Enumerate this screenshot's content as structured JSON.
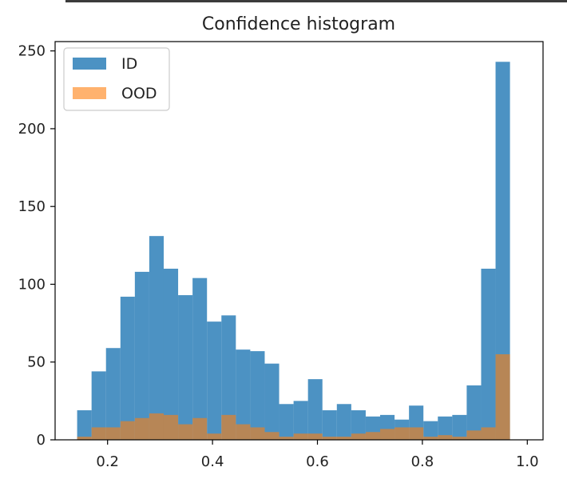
{
  "chart_data": {
    "type": "bar",
    "title": "Confidence histogram",
    "xlabel": "",
    "ylabel": "",
    "xlim": [
      0.1,
      1.03
    ],
    "ylim": [
      0,
      256
    ],
    "xticks": [
      0.2,
      0.4,
      0.6,
      0.8,
      1.0
    ],
    "xtick_labels": [
      "0.2",
      "0.4",
      "0.6",
      "0.8",
      "1.0"
    ],
    "yticks": [
      0,
      50,
      100,
      150,
      200,
      250
    ],
    "ytick_labels": [
      "0",
      "50",
      "100",
      "150",
      "200",
      "250"
    ],
    "grid": false,
    "legend_position": "top-left",
    "bin_edges": [
      0.142,
      0.1695,
      0.197,
      0.2245,
      0.252,
      0.2795,
      0.307,
      0.3345,
      0.362,
      0.3895,
      0.417,
      0.4445,
      0.472,
      0.4995,
      0.527,
      0.5545,
      0.582,
      0.6095,
      0.637,
      0.6645,
      0.692,
      0.7195,
      0.747,
      0.7745,
      0.802,
      0.8295,
      0.857,
      0.8845,
      0.912,
      0.9395,
      0.967,
      0.9945
    ],
    "series": [
      {
        "name": "ID",
        "color": "#1f77b4",
        "opacity": 0.8,
        "values": [
          19,
          44,
          59,
          92,
          108,
          131,
          110,
          93,
          104,
          76,
          80,
          58,
          57,
          49,
          23,
          25,
          39,
          19,
          23,
          19,
          15,
          16,
          13,
          22,
          12,
          15,
          16,
          35,
          110,
          243,
          0
        ]
      },
      {
        "name": "OOD",
        "color": "#ff7f0e",
        "opacity": 0.6,
        "values": [
          2,
          8,
          8,
          12,
          14,
          17,
          16,
          10,
          14,
          4,
          16,
          10,
          8,
          5,
          2,
          4,
          4,
          2,
          2,
          4,
          5,
          7,
          8,
          8,
          2,
          3,
          2,
          6,
          8,
          55,
          0
        ]
      }
    ]
  }
}
